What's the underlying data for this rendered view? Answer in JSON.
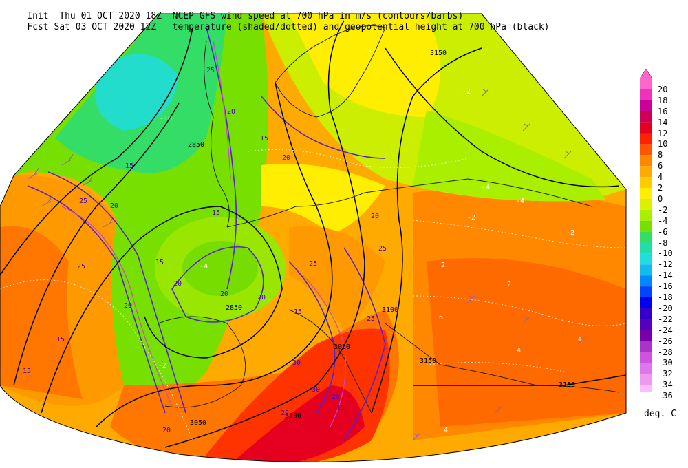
{
  "header": {
    "line1_left": "Init  Thu 01 OCT 2020 18Z",
    "line1_right": "NCEP GFS wind speed at 700 hPa in m/s (contours/barbs)",
    "line2_left": "Fcst Sat 03 OCT 2020 12Z",
    "line2_right": "temperature (shaded/dotted) and geopotential height at 700 hPa (black)"
  },
  "colorbar": {
    "unit": "deg. C",
    "levels": [
      {
        "label": "20",
        "color": "#ff66cc"
      },
      {
        "label": "18",
        "color": "#ee33bb"
      },
      {
        "label": "16",
        "color": "#cc0099"
      },
      {
        "label": "14",
        "color": "#cc0055"
      },
      {
        "label": "12",
        "color": "#e60020"
      },
      {
        "label": "10",
        "color": "#ff2200"
      },
      {
        "label": "8",
        "color": "#ff5500"
      },
      {
        "label": "6",
        "color": "#ff8800"
      },
      {
        "label": "4",
        "color": "#ffaa00"
      },
      {
        "label": "2",
        "color": "#ffcc00"
      },
      {
        "label": "0",
        "color": "#ffee00"
      },
      {
        "label": "-2",
        "color": "#ddf000"
      },
      {
        "label": "-4",
        "color": "#aaee00"
      },
      {
        "label": "-6",
        "color": "#77e000"
      },
      {
        "label": "-8",
        "color": "#33dd66"
      },
      {
        "label": "-10",
        "color": "#22ddaa"
      },
      {
        "label": "-12",
        "color": "#22dddd"
      },
      {
        "label": "-14",
        "color": "#11bbee"
      },
      {
        "label": "-16",
        "color": "#0088ff"
      },
      {
        "label": "-18",
        "color": "#0044ff"
      },
      {
        "label": "-20",
        "color": "#0000ee"
      },
      {
        "label": "-22",
        "color": "#3300cc"
      },
      {
        "label": "-24",
        "color": "#5500bb"
      },
      {
        "label": "-26",
        "color": "#7700aa"
      },
      {
        "label": "-28",
        "color": "#aa33cc"
      },
      {
        "label": "-30",
        "color": "#cc55dd"
      },
      {
        "label": "-32",
        "color": "#dd77ee"
      },
      {
        "label": "-34",
        "color": "#ee99ee"
      },
      {
        "label": "-36",
        "color": "#ffbbff"
      }
    ]
  },
  "map": {
    "height_labels": [
      "3150",
      "2850",
      "2850",
      "3100",
      "3050",
      "3150",
      "3100",
      "3050",
      "3150"
    ],
    "wind_labels": [
      "25",
      "20",
      "15",
      "20",
      "15",
      "25",
      "15",
      "20",
      "20",
      "20",
      "25",
      "20",
      "15",
      "15",
      "25",
      "15",
      "20",
      "20",
      "15",
      "25",
      "30",
      "20",
      "15",
      "30",
      "25",
      "25",
      "20"
    ],
    "temp_labels": [
      "-10",
      "-2",
      "-2",
      "-4",
      "-4",
      "-2",
      "-4",
      "-2",
      "-2",
      "2",
      "2",
      "4",
      "4",
      "6",
      "4"
    ]
  }
}
